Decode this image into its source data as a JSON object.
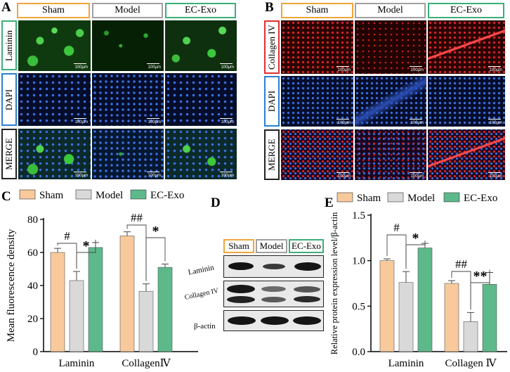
{
  "colors": {
    "sham": "#F8C99B",
    "model": "#D9D9D9",
    "ecexo": "#5DB98A",
    "sham_border": "#F0A53A",
    "model_border": "#A0A0A0",
    "ecexo_border": "#3DAE78"
  },
  "panel_a": {
    "letter": "A",
    "columns": [
      "Sham",
      "Model",
      "EC-Exo"
    ],
    "rows": [
      "Laminin",
      "DAPI",
      "MERGE"
    ],
    "scale": "100μm"
  },
  "panel_b": {
    "letter": "B",
    "columns": [
      "Sham",
      "Model",
      "EC-Exo"
    ],
    "rows": [
      "Collagen IV",
      "DAPI",
      "MERGE"
    ],
    "scale": "100μm"
  },
  "panel_c": {
    "letter": "C"
  },
  "panel_d": {
    "letter": "D",
    "columns": [
      "Sham",
      "Model",
      "EC-Exo"
    ],
    "rows": [
      "Laminin",
      "Collagen IV",
      "β-actin"
    ]
  },
  "panel_e": {
    "letter": "E"
  },
  "chart_data": [
    {
      "type": "bar",
      "panel": "C",
      "categories": [
        "Laminin",
        "CollagenⅣ"
      ],
      "series": [
        {
          "name": "Sham",
          "values": [
            60,
            70
          ],
          "errors": [
            2.5,
            2.5
          ]
        },
        {
          "name": "Model",
          "values": [
            43,
            36.5
          ],
          "errors": [
            5.5,
            4.5
          ]
        },
        {
          "name": "EC-Exo",
          "values": [
            63,
            51
          ],
          "errors": [
            3,
            2
          ]
        }
      ],
      "ylabel": "Mean fluorescence density",
      "ylim": [
        0,
        80
      ],
      "yticks": [
        0,
        20,
        40,
        60,
        80
      ],
      "annotations": [
        "#",
        "*",
        "##",
        "*"
      ],
      "legend": "top"
    },
    {
      "type": "bar",
      "panel": "E",
      "categories": [
        "Laminin",
        "Collagen Ⅳ"
      ],
      "series": [
        {
          "name": "Sham",
          "values": [
            1.0,
            0.75
          ],
          "errors": [
            0.02,
            0.03
          ]
        },
        {
          "name": "Model",
          "values": [
            0.76,
            0.33
          ],
          "errors": [
            0.12,
            0.1
          ]
        },
        {
          "name": "EC-Exo",
          "values": [
            1.14,
            0.74
          ],
          "errors": [
            0.05,
            0.13
          ]
        }
      ],
      "ylabel": "Relative protein expression level/β-actin",
      "ylim": [
        0,
        1.5
      ],
      "yticks": [
        "0.0",
        "0.5",
        "1.0",
        "1.5"
      ],
      "annotations": [
        "#",
        "*",
        "##",
        "**"
      ],
      "legend": "top"
    }
  ]
}
